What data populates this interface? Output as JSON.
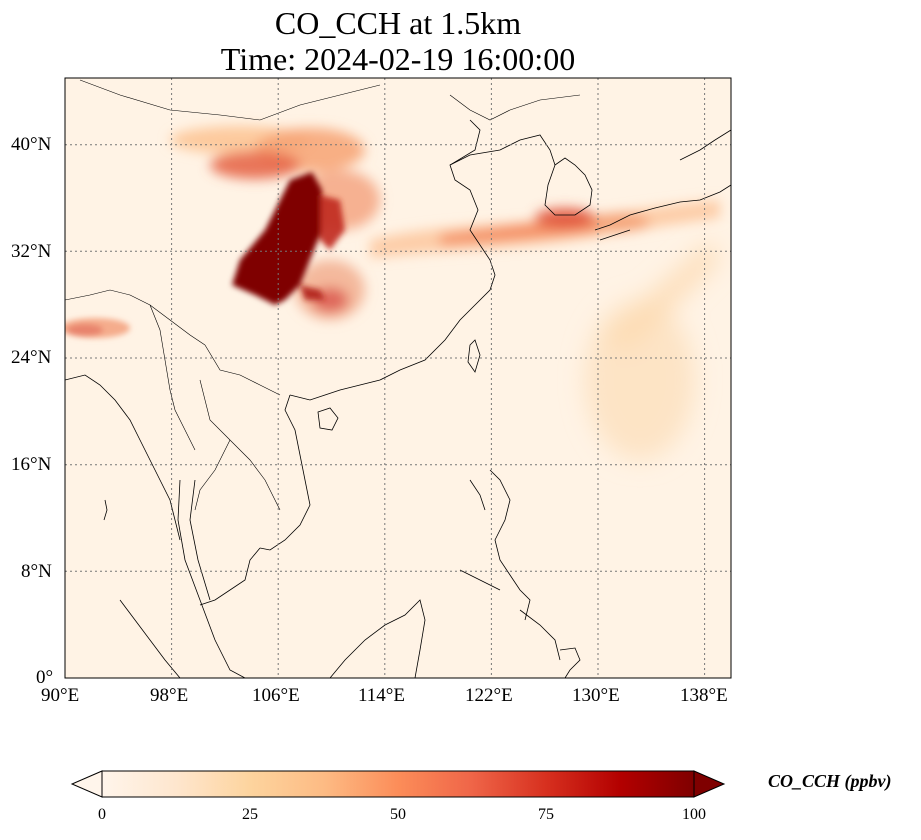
{
  "title": {
    "line1": "CO_CCH at 1.5km",
    "line2": "Time: 2024-02-19 16:00:00"
  },
  "map": {
    "lon_range": [
      90,
      140
    ],
    "lat_range": [
      0,
      45
    ],
    "lon_ticks": [
      "90°E",
      "98°E",
      "106°E",
      "114°E",
      "122°E",
      "130°E",
      "138°E"
    ],
    "lat_ticks": [
      "0°",
      "8°N",
      "16°N",
      "24°N",
      "32°N",
      "40°N"
    ],
    "colormap": [
      "#fff5eb",
      "#fee6ce",
      "#fdd0a2",
      "#fdae6b",
      "#fd8d3c",
      "#f16913",
      "#d94801",
      "#a63603",
      "#7f0000"
    ],
    "plumes": [
      {
        "region": "central-china-core",
        "lon": 106.5,
        "lat": 33.5,
        "level": 100
      },
      {
        "region": "north-china-band",
        "lon": 105,
        "lat": 39.5,
        "level": 45
      },
      {
        "region": "east-china-sea-band",
        "lon": 124,
        "lat": 33,
        "level": 45
      },
      {
        "region": "korea-japan-band",
        "lon": 130,
        "lat": 34.5,
        "level": 70
      },
      {
        "region": "northeast-india",
        "lon": 93,
        "lat": 26.5,
        "level": 50
      },
      {
        "region": "west-pacific-diffuse",
        "lon": 132,
        "lat": 22,
        "level": 20
      }
    ]
  },
  "colorbar": {
    "ticks": [
      "0",
      "25",
      "50",
      "75",
      "100"
    ],
    "range": [
      0,
      100
    ],
    "extend": "both",
    "label": "CO_CCH (ppbv)"
  }
}
